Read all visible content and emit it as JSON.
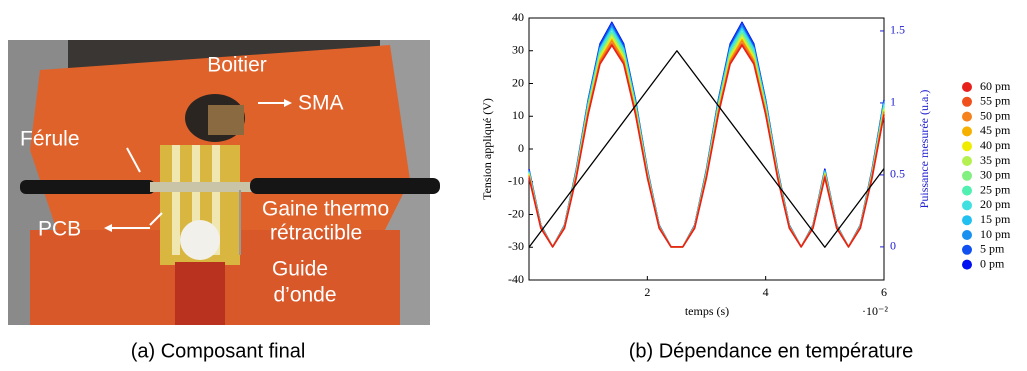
{
  "photo": {
    "labels": {
      "boitier": "Boitier",
      "sma": "SMA",
      "ferule": "Férule",
      "pcb": "PCB",
      "gaine": [
        "Gaine thermo",
        "rétractible"
      ],
      "guide": [
        "Guide",
        "d’onde"
      ]
    }
  },
  "captions": [
    "(a) Composant final",
    "(b) Dépendance en température"
  ],
  "chart_data": {
    "type": "line",
    "xlabel": "temps (s)",
    "x_multiplier": "·10⁻²",
    "ylabel": "Tension appliqué (V)",
    "y2label": "Puissance mesurée (u.a.)",
    "xlim": [
      0,
      6
    ],
    "xticks": [
      2,
      4,
      6
    ],
    "ylim": [
      -40,
      40
    ],
    "yticks": [
      -40,
      -30,
      -20,
      -10,
      0,
      10,
      20,
      30,
      40
    ],
    "y2lim": [
      -0.23,
      1.59
    ],
    "y2ticks": [
      0,
      0.5,
      1,
      1.5
    ],
    "grid": false,
    "legend": "right",
    "x": [
      0,
      0.2,
      0.4,
      0.6,
      0.8,
      1.0,
      1.2,
      1.4,
      1.6,
      1.8,
      2.0,
      2.2,
      2.4,
      2.6,
      2.8,
      3.0,
      3.2,
      3.4,
      3.6,
      3.8,
      4.0,
      4.2,
      4.4,
      4.6,
      4.8,
      5.0,
      5.2,
      5.4,
      5.6,
      5.8,
      6.0
    ],
    "series": [
      {
        "color": "#000000",
        "x": [
          0,
          2.5,
          5,
          6
        ],
        "values": [
          -30,
          30,
          -30,
          -6
        ]
      },
      {
        "name": "60 pm",
        "color": "#e8201c",
        "axis": "y2",
        "values": [
          0.48,
          0.13,
          0,
          0.13,
          0.48,
          0.92,
          1.27,
          1.4,
          1.27,
          0.92,
          0.48,
          0.13,
          0,
          0,
          0.13,
          0.48,
          0.92,
          1.27,
          1.4,
          1.27,
          0.92,
          0.48,
          0.13,
          0,
          0.13,
          0.48,
          0.13,
          0,
          0.13,
          0.48,
          0.92
        ]
      },
      {
        "name": "55 pm",
        "color": "#f0501c",
        "axis": "y2",
        "values": [
          0.49,
          0.13,
          0,
          0.13,
          0.49,
          0.92,
          1.28,
          1.41,
          1.28,
          0.92,
          0.49,
          0.13,
          0,
          0,
          0.13,
          0.49,
          0.92,
          1.28,
          1.41,
          1.28,
          0.92,
          0.49,
          0.13,
          0,
          0.13,
          0.49,
          0.13,
          0,
          0.13,
          0.49,
          0.92
        ]
      },
      {
        "name": "50 pm",
        "color": "#f5821e",
        "axis": "y2",
        "values": [
          0.49,
          0.14,
          0,
          0.14,
          0.49,
          0.94,
          1.29,
          1.43,
          1.29,
          0.94,
          0.49,
          0.14,
          0,
          0,
          0.14,
          0.49,
          0.94,
          1.29,
          1.43,
          1.29,
          0.94,
          0.49,
          0.14,
          0,
          0.14,
          0.49,
          0.14,
          0,
          0.14,
          0.49,
          0.94
        ]
      },
      {
        "name": "45 pm",
        "color": "#f5b000",
        "axis": "y2",
        "values": [
          0.5,
          0.14,
          0,
          0.14,
          0.5,
          0.94,
          1.3,
          1.44,
          1.3,
          0.94,
          0.5,
          0.14,
          0,
          0,
          0.14,
          0.5,
          0.94,
          1.3,
          1.44,
          1.3,
          0.94,
          0.5,
          0.14,
          0,
          0.14,
          0.5,
          0.14,
          0,
          0.14,
          0.5,
          0.94
        ]
      },
      {
        "name": "40 pm",
        "color": "#f0ec00",
        "axis": "y2",
        "values": [
          0.5,
          0.14,
          0,
          0.14,
          0.5,
          0.95,
          1.31,
          1.45,
          1.31,
          0.95,
          0.5,
          0.14,
          0,
          0,
          0.14,
          0.5,
          0.95,
          1.31,
          1.45,
          1.31,
          0.95,
          0.5,
          0.14,
          0,
          0.14,
          0.5,
          0.14,
          0,
          0.14,
          0.5,
          0.95
        ]
      },
      {
        "name": "35 pm",
        "color": "#b4f050",
        "axis": "y2",
        "values": [
          0.51,
          0.14,
          0,
          0.14,
          0.51,
          0.96,
          1.33,
          1.47,
          1.33,
          0.96,
          0.51,
          0.14,
          0,
          0,
          0.14,
          0.51,
          0.96,
          1.33,
          1.47,
          1.33,
          0.96,
          0.51,
          0.14,
          0,
          0.14,
          0.51,
          0.14,
          0,
          0.14,
          0.51,
          0.96
        ]
      },
      {
        "name": "30 pm",
        "color": "#80f080",
        "axis": "y2",
        "values": [
          0.51,
          0.14,
          0,
          0.14,
          0.51,
          0.97,
          1.34,
          1.48,
          1.34,
          0.97,
          0.51,
          0.14,
          0,
          0,
          0.14,
          0.51,
          0.97,
          1.34,
          1.48,
          1.34,
          0.97,
          0.51,
          0.14,
          0,
          0.14,
          0.51,
          0.14,
          0,
          0.14,
          0.51,
          0.97
        ]
      },
      {
        "name": "25 pm",
        "color": "#50f0b0",
        "axis": "y2",
        "values": [
          0.51,
          0.14,
          0,
          0.14,
          0.51,
          0.98,
          1.35,
          1.49,
          1.35,
          0.98,
          0.51,
          0.14,
          0,
          0,
          0.14,
          0.51,
          0.98,
          1.35,
          1.49,
          1.35,
          0.98,
          0.51,
          0.14,
          0,
          0.14,
          0.51,
          0.14,
          0,
          0.14,
          0.51,
          0.98
        ]
      },
      {
        "name": "20 pm",
        "color": "#40e0e0",
        "axis": "y2",
        "values": [
          0.52,
          0.14,
          0,
          0.14,
          0.52,
          0.99,
          1.37,
          1.51,
          1.37,
          0.99,
          0.52,
          0.14,
          0,
          0,
          0.14,
          0.52,
          0.99,
          1.37,
          1.51,
          1.37,
          0.99,
          0.52,
          0.14,
          0,
          0.14,
          0.52,
          0.14,
          0,
          0.14,
          0.52,
          0.99
        ]
      },
      {
        "name": "15 pm",
        "color": "#20c0f0",
        "axis": "y2",
        "values": [
          0.52,
          0.14,
          0,
          0.14,
          0.52,
          1.0,
          1.38,
          1.52,
          1.38,
          1.0,
          0.52,
          0.14,
          0,
          0,
          0.14,
          0.52,
          1.0,
          1.38,
          1.52,
          1.38,
          1.0,
          0.52,
          0.14,
          0,
          0.14,
          0.52,
          0.14,
          0,
          0.14,
          0.52,
          1.0
        ]
      },
      {
        "name": "10 pm",
        "color": "#1890f0",
        "axis": "y2",
        "values": [
          0.53,
          0.15,
          0,
          0.15,
          0.53,
          1.0,
          1.38,
          1.53,
          1.38,
          1.0,
          0.53,
          0.15,
          0,
          0,
          0.15,
          0.53,
          1.0,
          1.38,
          1.53,
          1.38,
          1.0,
          0.53,
          0.15,
          0,
          0.15,
          0.53,
          0.15,
          0,
          0.15,
          0.53,
          1.0
        ]
      },
      {
        "name": "5 pm",
        "color": "#1050f0",
        "axis": "y2",
        "values": [
          0.53,
          0.15,
          0,
          0.15,
          0.53,
          1.02,
          1.4,
          1.55,
          1.4,
          1.02,
          0.53,
          0.15,
          0,
          0,
          0.15,
          0.53,
          1.02,
          1.4,
          1.55,
          1.4,
          1.02,
          0.53,
          0.15,
          0,
          0.15,
          0.53,
          0.15,
          0,
          0.15,
          0.53,
          1.02
        ]
      },
      {
        "name": "0 pm",
        "color": "#0010f0",
        "axis": "y2",
        "values": [
          0.54,
          0.15,
          0,
          0.15,
          0.54,
          1.02,
          1.41,
          1.56,
          1.41,
          1.02,
          0.54,
          0.15,
          0,
          0,
          0.15,
          0.54,
          1.02,
          1.41,
          1.56,
          1.41,
          1.02,
          0.54,
          0.15,
          0,
          0.15,
          0.54,
          0.15,
          0,
          0.15,
          0.54,
          1.02
        ]
      }
    ]
  }
}
